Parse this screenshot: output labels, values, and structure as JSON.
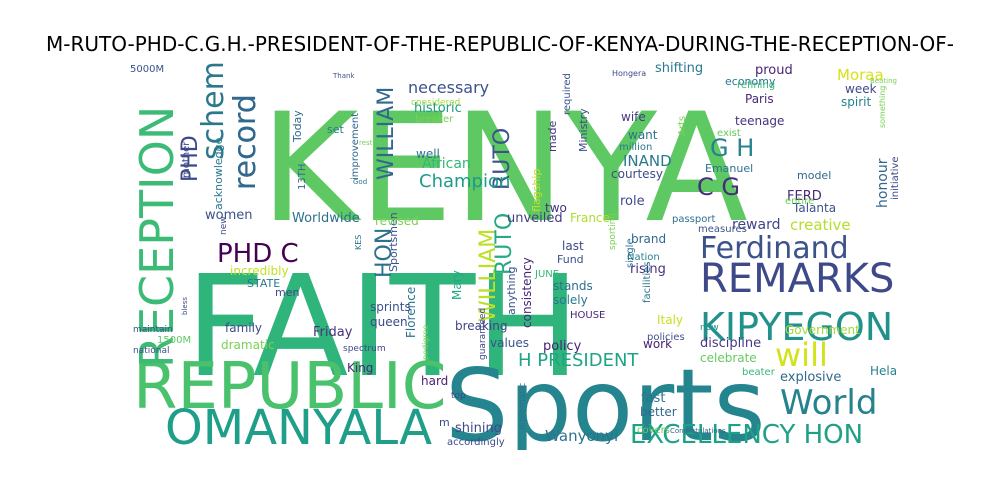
{
  "title": "M-RUTO-PHD-C.G.H.-PRESIDENT-OF-THE-REPUBLIC-OF-KENYA-DURING-THE-RECEPTION-OF-",
  "words": [
    {
      "text": "KENYA",
      "color": "#5ec962"
    },
    {
      "text": "FAITH",
      "color": "#2fb47c"
    },
    {
      "text": "Sports",
      "color": "#25858e"
    },
    {
      "text": "REPUBLIC",
      "color": "#4ac16d"
    },
    {
      "text": "OMANYALA",
      "color": "#1f9e89"
    },
    {
      "text": "RECEPTION",
      "color": "#3bbb75"
    },
    {
      "text": "REMARKS",
      "color": "#3e4989"
    },
    {
      "text": "KIPYEGON",
      "color": "#21918c"
    },
    {
      "text": "Ferdinand",
      "color": "#3b528b"
    },
    {
      "text": "World",
      "color": "#26828e"
    },
    {
      "text": "EXCELLENCY HON",
      "color": "#1fa188"
    },
    {
      "text": "will",
      "color": "#d2e21b"
    },
    {
      "text": "PHD C",
      "color": "#440154"
    },
    {
      "text": "record",
      "color": "#31688e"
    },
    {
      "text": "scheme",
      "color": "#2a788e"
    },
    {
      "text": "WILLIAM",
      "color": "#31688e"
    },
    {
      "text": "HON",
      "color": "#2d708e"
    },
    {
      "text": "RUTO",
      "color": "#3b528b"
    },
    {
      "text": "PHD",
      "color": "#3e4989"
    },
    {
      "text": "G H",
      "color": "#26828e"
    },
    {
      "text": "C G",
      "color": "#472d7b"
    },
    {
      "text": "H PRESIDENT",
      "color": "#20a486"
    },
    {
      "text": "WILLIAM",
      "color": "#bddf26"
    },
    {
      "text": "RUTO",
      "color": "#25ab82"
    },
    {
      "text": "Champion",
      "color": "#1e9b8a"
    },
    {
      "text": "necessary",
      "color": "#3b528b"
    },
    {
      "text": "Wanyonyi",
      "color": "#2c728e"
    },
    {
      "text": "creative",
      "color": "#b5de2b"
    },
    {
      "text": "reward",
      "color": "#414487"
    },
    {
      "text": "honour",
      "color": "#31688e"
    },
    {
      "text": "FERD",
      "color": "#472a7a"
    },
    {
      "text": "INAND",
      "color": "#2a788e"
    },
    {
      "text": "Moraa",
      "color": "#d8e219"
    },
    {
      "text": "record",
      "color": "#31688e"
    },
    {
      "text": "women",
      "color": "#3b528b"
    },
    {
      "text": "historic",
      "color": "#1f9a8a"
    },
    {
      "text": "African",
      "color": "#35b779"
    },
    {
      "text": "Worldwide",
      "color": "#2d708e"
    },
    {
      "text": "unveiled",
      "color": "#433e85"
    },
    {
      "text": "Sportsmen",
      "color": "#3b528b"
    },
    {
      "text": "incredibly",
      "color": "#c2df23"
    },
    {
      "text": "Mary",
      "color": "#22a785"
    },
    {
      "text": "Florence",
      "color": "#2c728e"
    },
    {
      "text": "explosive",
      "color": "#31688e"
    },
    {
      "text": "celebrate",
      "color": "#65cb5e"
    },
    {
      "text": "Government",
      "color": "#a0da39"
    },
    {
      "text": "Italy",
      "color": "#c8e020"
    },
    {
      "text": "Friday",
      "color": "#46327e"
    },
    {
      "text": "family",
      "color": "#3e4a89"
    },
    {
      "text": "dramatic",
      "color": "#7ad151"
    },
    {
      "text": "King",
      "color": "#482878"
    },
    {
      "text": "hard",
      "color": "#481f70"
    },
    {
      "text": "shining",
      "color": "#3e4a89"
    },
    {
      "text": "fast",
      "color": "#2c728e"
    },
    {
      "text": "better",
      "color": "#31688e"
    },
    {
      "text": "Hela",
      "color": "#26828e"
    },
    {
      "text": "policy",
      "color": "#482475"
    },
    {
      "text": "discipline",
      "color": "#443983"
    },
    {
      "text": "work",
      "color": "#482173"
    },
    {
      "text": "values",
      "color": "#3b528b"
    },
    {
      "text": "breaking",
      "color": "#414487"
    },
    {
      "text": "queen",
      "color": "#3e4989"
    },
    {
      "text": "sprints",
      "color": "#3b528b"
    },
    {
      "text": "STATE",
      "color": "#2a788e"
    },
    {
      "text": "men",
      "color": "#3e4989"
    },
    {
      "text": "1500M",
      "color": "#5ec962"
    },
    {
      "text": "national",
      "color": "#3b528b"
    },
    {
      "text": "maintain",
      "color": "#3b528b"
    },
    {
      "text": "rising",
      "color": "#46327e"
    },
    {
      "text": "brand",
      "color": "#31688e"
    },
    {
      "text": "stands",
      "color": "#2c728e"
    },
    {
      "text": "solely",
      "color": "#2a788e"
    },
    {
      "text": "HOUSE",
      "color": "#482878"
    },
    {
      "text": "JUNE",
      "color": "#35b779"
    },
    {
      "text": "last",
      "color": "#3e4989"
    },
    {
      "text": "Fund",
      "color": "#3b528b"
    },
    {
      "text": "revised",
      "color": "#7ad151"
    },
    {
      "text": "two",
      "color": "#46327e"
    },
    {
      "text": "France",
      "color": "#addc30"
    },
    {
      "text": "role",
      "color": "#3e4a89"
    },
    {
      "text": "courtesy",
      "color": "#3e4989"
    },
    {
      "text": "want",
      "color": "#2c728e"
    },
    {
      "text": "wife",
      "color": "#443983"
    },
    {
      "text": "Emanuel",
      "color": "#2c728e"
    },
    {
      "text": "teenage",
      "color": "#46337e"
    },
    {
      "text": "Paris",
      "color": "#482878"
    },
    {
      "text": "economy",
      "color": "#2a788e"
    },
    {
      "text": "proud",
      "color": "#482475"
    },
    {
      "text": "refining",
      "color": "#35b779"
    },
    {
      "text": "shifting",
      "color": "#2a788e"
    },
    {
      "text": "week",
      "color": "#3e4989"
    },
    {
      "text": "spirit",
      "color": "#26828e"
    },
    {
      "text": "model",
      "color": "#31688e"
    },
    {
      "text": "Talanta",
      "color": "#3b528b"
    },
    {
      "text": "entire",
      "color": "#6ece58"
    },
    {
      "text": "passport",
      "color": "#2d708e"
    },
    {
      "text": "measures",
      "color": "#3b528b"
    },
    {
      "text": "beater",
      "color": "#35b779"
    },
    {
      "text": "now",
      "color": "#21918c"
    },
    {
      "text": "Nation",
      "color": "#26828e"
    },
    {
      "text": "facilities",
      "color": "#2a788e"
    },
    {
      "text": "policies",
      "color": "#3b528b"
    },
    {
      "text": "sporting",
      "color": "#7ad151"
    },
    {
      "text": "improvement",
      "color": "#31688e"
    },
    {
      "text": "acknowledge",
      "color": "#2a788e"
    },
    {
      "text": "mother",
      "color": "#3e4989"
    },
    {
      "text": "Today",
      "color": "#31688e"
    },
    {
      "text": "5000M",
      "color": "#3b528b"
    },
    {
      "text": "set",
      "color": "#2a788e"
    },
    {
      "text": "13TH",
      "color": "#31688e"
    },
    {
      "text": "well",
      "color": "#2c728e"
    },
    {
      "text": "breaker",
      "color": "#7ad151"
    },
    {
      "text": "considered",
      "color": "#9fda3a"
    },
    {
      "text": "required",
      "color": "#3b528b"
    },
    {
      "text": "Ministry",
      "color": "#3e4989"
    },
    {
      "text": "made",
      "color": "#46327e"
    },
    {
      "text": "million",
      "color": "#2a788e"
    },
    {
      "text": "flagship",
      "color": "#c2df23"
    },
    {
      "text": "Arts",
      "color": "#7ad151"
    },
    {
      "text": "single",
      "color": "#2c728e"
    },
    {
      "text": "initiative",
      "color": "#3e4989"
    },
    {
      "text": "exist",
      "color": "#65cb5e"
    },
    {
      "text": "something",
      "color": "#7ad151"
    },
    {
      "text": "consistency",
      "color": "#482878"
    },
    {
      "text": "anything",
      "color": "#3b528b"
    },
    {
      "text": "guaranteed",
      "color": "#3e4989"
    },
    {
      "text": "pedigree",
      "color": "#7ad151"
    },
    {
      "text": "KES",
      "color": "#2c728e"
    },
    {
      "text": "new",
      "color": "#3e4989"
    },
    {
      "text": "diplomatic",
      "color": "#2d708e"
    },
    {
      "text": "accordingly",
      "color": "#3e4989"
    },
    {
      "text": "covers",
      "color": "#65cb5e"
    },
    {
      "text": "top",
      "color": "#3e4989"
    },
    {
      "text": "spectrum",
      "color": "#3e4989"
    },
    {
      "text": "Congratulations",
      "color": "#31688e"
    },
    {
      "text": "Hongera",
      "color": "#3e4989"
    },
    {
      "text": "Thank",
      "color": "#3b528b"
    },
    {
      "text": "rest",
      "color": "#7ad151"
    },
    {
      "text": "God",
      "color": "#2a788e"
    },
    {
      "text": "bless",
      "color": "#3e4989"
    },
    {
      "text": "Beating",
      "color": "#7ad151"
    },
    {
      "text": "m",
      "color": "#3e4989"
    }
  ]
}
